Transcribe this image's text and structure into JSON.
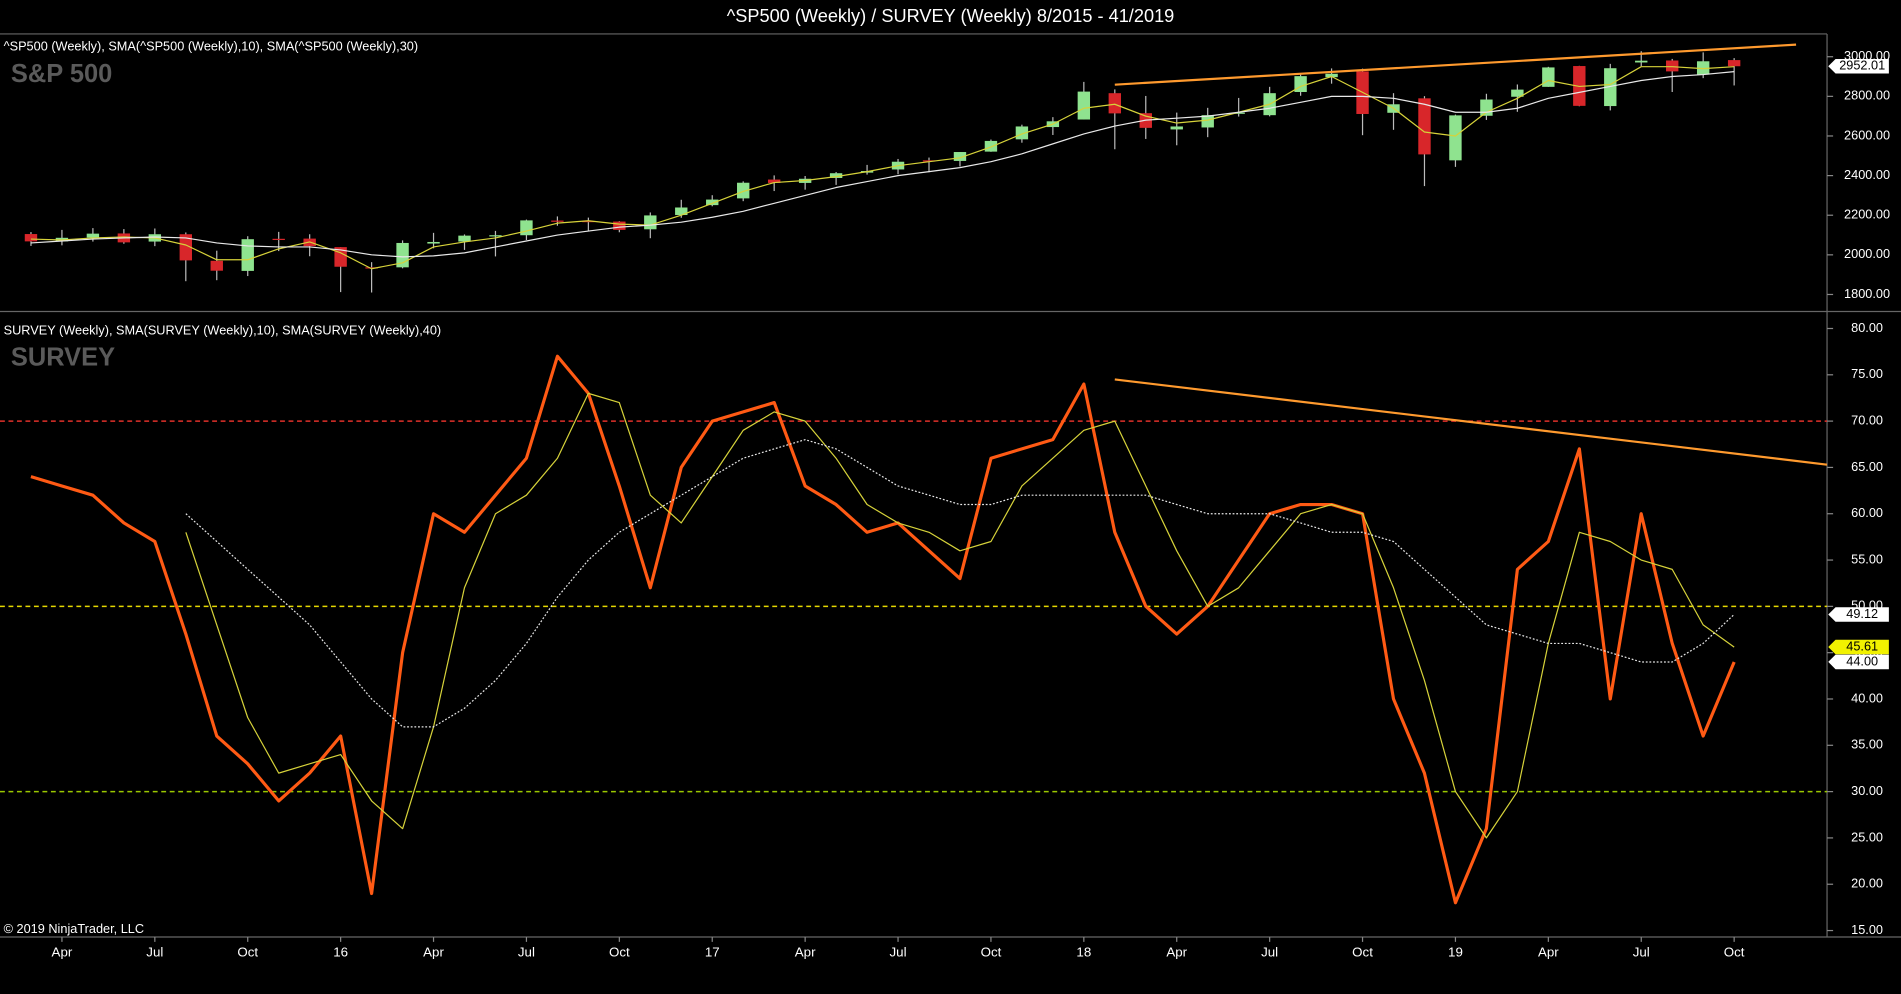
{
  "title": "^SP500 (Weekly) / SURVEY (Weekly)  8/2015 - 41/2019",
  "copyright": "© 2019 NinjaTrader, LLC",
  "chart_data": [
    {
      "type": "candlestick",
      "header": "^SP500 (Weekly), SMA(^SP500 (Weekly),10), SMA(^SP500 (Weekly),30)",
      "label": "S&P 500",
      "x": [
        "2015-03",
        "2015-04",
        "2015-05",
        "2015-06",
        "2015-07",
        "2015-08",
        "2015-09",
        "2015-10",
        "2015-11",
        "2015-12",
        "2016-01",
        "2016-02",
        "2016-03",
        "2016-04",
        "2016-05",
        "2016-06",
        "2016-07",
        "2016-08",
        "2016-09",
        "2016-10",
        "2016-11",
        "2016-12",
        "2017-01",
        "2017-02",
        "2017-03",
        "2017-04",
        "2017-05",
        "2017-06",
        "2017-07",
        "2017-08",
        "2017-09",
        "2017-10",
        "2017-11",
        "2017-12",
        "2018-01",
        "2018-02",
        "2018-03",
        "2018-04",
        "2018-05",
        "2018-06",
        "2018-07",
        "2018-08",
        "2018-09",
        "2018-10",
        "2018-11",
        "2018-12",
        "2019-01",
        "2019-02",
        "2019-03",
        "2019-04",
        "2019-05",
        "2019-06",
        "2019-07",
        "2019-08",
        "2019-09",
        "2019-10"
      ],
      "open": [
        2105,
        2068,
        2087,
        2108,
        2067,
        2104,
        1970,
        1919,
        2081,
        2082,
        2039,
        1937,
        1937,
        2057,
        2067,
        2094,
        2099,
        2173,
        2171,
        2168,
        2129,
        2201,
        2251,
        2285,
        2380,
        2363,
        2388,
        2415,
        2431,
        2477,
        2474,
        2521,
        2583,
        2645,
        2683,
        2816,
        2715,
        2633,
        2643,
        2718,
        2705,
        2822,
        2897,
        2926,
        2717,
        2790,
        2477,
        2702,
        2798,
        2848,
        2953,
        2751,
        2971,
        2981,
        2910,
        2983
      ],
      "high": [
        2115,
        2126,
        2135,
        2130,
        2133,
        2113,
        2021,
        2094,
        2116,
        2104,
        2039,
        1963,
        2073,
        2111,
        2103,
        2121,
        2178,
        2194,
        2188,
        2170,
        2214,
        2278,
        2301,
        2371,
        2401,
        2398,
        2418,
        2454,
        2484,
        2491,
        2519,
        2582,
        2657,
        2695,
        2873,
        2835,
        2802,
        2718,
        2742,
        2792,
        2848,
        2916,
        2941,
        2940,
        2816,
        2801,
        2708,
        2813,
        2860,
        2949,
        2954,
        2964,
        3028,
        2989,
        3022,
        2993
      ],
      "low": [
        2045,
        2048,
        2067,
        2056,
        2044,
        1867,
        1872,
        1893,
        2019,
        1993,
        1812,
        1810,
        1932,
        2033,
        2025,
        1992,
        2075,
        2147,
        2120,
        2114,
        2084,
        2187,
        2245,
        2271,
        2322,
        2329,
        2353,
        2405,
        2407,
        2417,
        2446,
        2520,
        2566,
        2605,
        2683,
        2533,
        2585,
        2553,
        2594,
        2698,
        2699,
        2803,
        2864,
        2604,
        2631,
        2347,
        2444,
        2681,
        2722,
        2848,
        2750,
        2729,
        2952,
        2822,
        2892,
        2855
      ],
      "close": [
        2068,
        2086,
        2107,
        2063,
        2104,
        1972,
        1920,
        2079,
        2080,
        2044,
        1940,
        1932,
        2060,
        2065,
        2097,
        2099,
        2174,
        2171,
        2168,
        2126,
        2199,
        2239,
        2279,
        2364,
        2363,
        2384,
        2412,
        2423,
        2470,
        2472,
        2519,
        2575,
        2648,
        2674,
        2824,
        2714,
        2641,
        2648,
        2705,
        2718,
        2816,
        2902,
        2914,
        2711,
        2760,
        2507,
        2704,
        2784,
        2834,
        2946,
        2752,
        2942,
        2980,
        2926,
        2977,
        2952.01
      ],
      "up_color": "#8fe38f",
      "down_color": "#d8262a",
      "wick_color": "#bbbbbb",
      "series": [
        {
          "color": "#d6d23a",
          "style": "solid",
          "values": [
            2080,
            2075,
            2085,
            2090,
            2085,
            2050,
            1975,
            1975,
            2030,
            2065,
            2010,
            1930,
            1960,
            2040,
            2065,
            2085,
            2120,
            2160,
            2172,
            2155,
            2150,
            2200,
            2260,
            2320,
            2365,
            2375,
            2395,
            2420,
            2450,
            2470,
            2490,
            2545,
            2610,
            2660,
            2740,
            2760,
            2700,
            2665,
            2680,
            2720,
            2760,
            2850,
            2900,
            2820,
            2740,
            2620,
            2600,
            2720,
            2790,
            2880,
            2850,
            2860,
            2950,
            2950,
            2940,
            2950
          ]
        },
        {
          "color": "#e8e8e8",
          "style": "solid",
          "values": [
            2060,
            2070,
            2080,
            2085,
            2090,
            2085,
            2060,
            2045,
            2040,
            2040,
            2025,
            2000,
            1990,
            1995,
            2010,
            2040,
            2070,
            2100,
            2120,
            2140,
            2150,
            2165,
            2190,
            2220,
            2260,
            2300,
            2340,
            2370,
            2400,
            2420,
            2440,
            2470,
            2510,
            2560,
            2610,
            2650,
            2680,
            2690,
            2700,
            2720,
            2740,
            2770,
            2800,
            2800,
            2790,
            2760,
            2720,
            2720,
            2740,
            2790,
            2820,
            2850,
            2880,
            2900,
            2910,
            2925
          ]
        }
      ],
      "trend_lines": [
        {
          "x": [
            "2018-02",
            "2019-12"
          ],
          "y": [
            2859,
            3061
          ],
          "color": "#ff9a2e"
        }
      ],
      "last_labels": [
        {
          "value": 2952.01,
          "color": "#ffffff"
        }
      ],
      "xlim": [
        "2015-02",
        "2020-01"
      ],
      "ylim": [
        1720,
        3115
      ],
      "yticks": [
        {
          "value": 1800,
          "label": "1800.00"
        },
        {
          "value": 2000,
          "label": "2000.00"
        },
        {
          "value": 2200,
          "label": "2200.00"
        },
        {
          "value": 2400,
          "label": "2400.00"
        },
        {
          "value": 2600,
          "label": "2600.00"
        },
        {
          "value": 2800,
          "label": "2800.00"
        },
        {
          "value": 3000,
          "label": "3000.00"
        }
      ]
    },
    {
      "type": "line",
      "header": "SURVEY (Weekly), SMA(SURVEY (Weekly),10), SMA(SURVEY (Weekly),40)",
      "label": "SURVEY",
      "x": [
        "2015-03",
        "2015-04",
        "2015-05",
        "2015-06",
        "2015-07",
        "2015-08",
        "2015-09",
        "2015-10",
        "2015-11",
        "2015-12",
        "2016-01",
        "2016-02",
        "2016-03",
        "2016-04",
        "2016-05",
        "2016-06",
        "2016-07",
        "2016-08",
        "2016-09",
        "2016-10",
        "2016-11",
        "2016-12",
        "2017-01",
        "2017-02",
        "2017-03",
        "2017-04",
        "2017-05",
        "2017-06",
        "2017-07",
        "2017-08",
        "2017-09",
        "2017-10",
        "2017-11",
        "2017-12",
        "2018-01",
        "2018-02",
        "2018-03",
        "2018-04",
        "2018-05",
        "2018-06",
        "2018-07",
        "2018-08",
        "2018-09",
        "2018-10",
        "2018-11",
        "2018-12",
        "2019-01",
        "2019-02",
        "2019-03",
        "2019-04",
        "2019-05",
        "2019-06",
        "2019-07",
        "2019-08",
        "2019-09",
        "2019-10"
      ],
      "series": [
        {
          "color": "#ff5a14",
          "style": "thick",
          "values": [
            64,
            63,
            62,
            59,
            57,
            47,
            36,
            33,
            29,
            32,
            36,
            19,
            45,
            60,
            58,
            62,
            66,
            77,
            73,
            63,
            52,
            65,
            70,
            71,
            72,
            63,
            61,
            58,
            59,
            56,
            53,
            66,
            67,
            68,
            74,
            58,
            50,
            47,
            50,
            55,
            60,
            61,
            61,
            60,
            40,
            32,
            18,
            26,
            54,
            57,
            67,
            40,
            60,
            46,
            36,
            44
          ]
        },
        {
          "color": "#d6d23a",
          "style": "solid",
          "values": [
            null,
            null,
            null,
            null,
            null,
            58,
            48,
            38,
            32,
            33,
            34,
            29,
            26,
            37,
            52,
            60,
            62,
            66,
            73,
            72,
            62,
            59,
            64,
            69,
            71,
            70,
            66,
            61,
            59,
            58,
            56,
            57,
            63,
            66,
            69,
            70,
            63,
            56,
            50,
            52,
            56,
            60,
            61,
            60,
            52,
            42,
            30,
            25,
            30,
            46,
            58,
            57,
            55,
            54,
            48,
            45.61
          ]
        },
        {
          "color": "#e8e8e8",
          "style": "dotted",
          "values": [
            null,
            null,
            null,
            null,
            null,
            60,
            57,
            54,
            51,
            48,
            44,
            40,
            37,
            37,
            39,
            42,
            46,
            51,
            55,
            58,
            60,
            62,
            64,
            66,
            67,
            68,
            67,
            65,
            63,
            62,
            61,
            61,
            62,
            62,
            62,
            62,
            62,
            61,
            60,
            60,
            60,
            59,
            58,
            58,
            57,
            54,
            51,
            48,
            47,
            46,
            46,
            45,
            44,
            44,
            46,
            49.12
          ]
        }
      ],
      "hlines": [
        {
          "value": 70,
          "color": "#e0302a"
        },
        {
          "value": 50,
          "color": "#e5d800"
        },
        {
          "value": 30,
          "color": "#9ac700"
        }
      ],
      "trend_lines": [
        {
          "x": [
            "2018-02",
            "2020-01"
          ],
          "y": [
            74.5,
            65.3
          ],
          "color": "#ff9a2e"
        }
      ],
      "last_labels": [
        {
          "value": 49.12,
          "color": "#ffffff"
        },
        {
          "value": 45.61,
          "color": "#f2f200"
        },
        {
          "value": 44,
          "label": "44.00",
          "color": "#ffffff"
        }
      ],
      "xlim": [
        "2015-02",
        "2020-01"
      ],
      "ylim": [
        14.3,
        81.7
      ],
      "yticks": [
        {
          "value": 15,
          "label": "15.00"
        },
        {
          "value": 20,
          "label": "20.00"
        },
        {
          "value": 25,
          "label": "25.00"
        },
        {
          "value": 30,
          "label": "30.00"
        },
        {
          "value": 35,
          "label": "35.00"
        },
        {
          "value": 40,
          "label": "40.00"
        },
        {
          "value": 45,
          "label": "45.00"
        },
        {
          "value": 50,
          "label": "50.00"
        },
        {
          "value": 55,
          "label": "55.00"
        },
        {
          "value": 60,
          "label": "60.00"
        },
        {
          "value": 65,
          "label": "65.00"
        },
        {
          "value": 70,
          "label": "70.00"
        },
        {
          "value": 75,
          "label": "75.00"
        },
        {
          "value": 80,
          "label": "80.00"
        }
      ],
      "xticks": [
        {
          "value": "2015-04",
          "label": "Apr"
        },
        {
          "value": "2015-07",
          "label": "Jul"
        },
        {
          "value": "2015-10",
          "label": "Oct"
        },
        {
          "value": "2016-01",
          "label": "16"
        },
        {
          "value": "2016-04",
          "label": "Apr"
        },
        {
          "value": "2016-07",
          "label": "Jul"
        },
        {
          "value": "2016-10",
          "label": "Oct"
        },
        {
          "value": "2017-01",
          "label": "17"
        },
        {
          "value": "2017-04",
          "label": "Apr"
        },
        {
          "value": "2017-07",
          "label": "Jul"
        },
        {
          "value": "2017-10",
          "label": "Oct"
        },
        {
          "value": "2018-01",
          "label": "18"
        },
        {
          "value": "2018-04",
          "label": "Apr"
        },
        {
          "value": "2018-07",
          "label": "Jul"
        },
        {
          "value": "2018-10",
          "label": "Oct"
        },
        {
          "value": "2019-01",
          "label": "19"
        },
        {
          "value": "2019-04",
          "label": "Apr"
        },
        {
          "value": "2019-07",
          "label": "Jul"
        },
        {
          "value": "2019-10",
          "label": "Oct"
        }
      ]
    }
  ]
}
